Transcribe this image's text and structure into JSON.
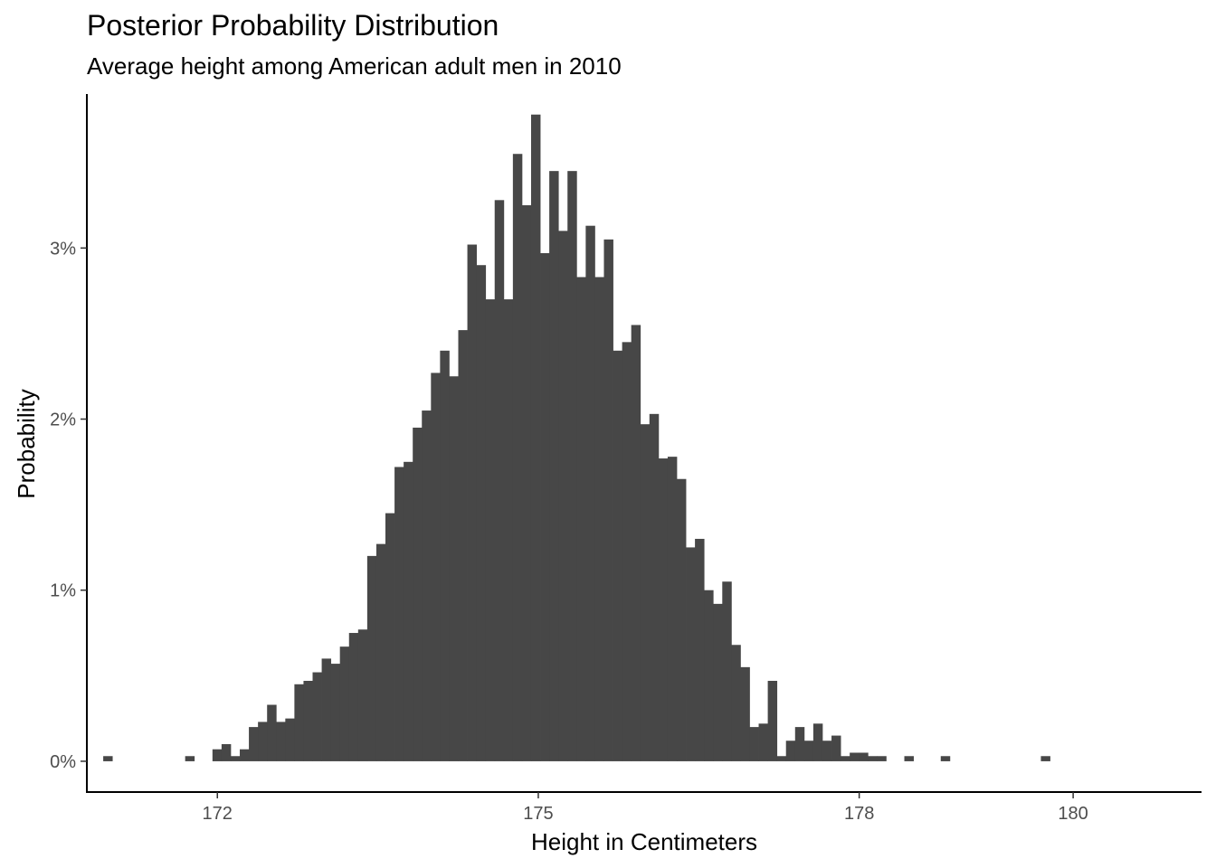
{
  "chart_data": {
    "type": "bar",
    "title": "Posterior Probability Distribution",
    "subtitle": "Average height among American adult men in 2010",
    "xlabel": "Height in Centimeters",
    "ylabel": "Probability",
    "xlim": [
      170.78,
      181.2
    ],
    "ylim": [
      -0.0018,
      0.039
    ],
    "x_ticks": [
      172,
      175,
      178,
      180
    ],
    "x_tick_labels": [
      "172",
      "175",
      "178",
      "180"
    ],
    "y_ticks": [
      0,
      0.01,
      0.02,
      0.03
    ],
    "y_tick_labels": [
      "0%",
      "1%",
      "2%",
      "3%"
    ],
    "grid": false,
    "bar_color": "#474747",
    "bin_width": 0.0851,
    "bins_start": 170.933,
    "bins": [
      [
        0,
        0.0003
      ],
      [
        9,
        0.0003
      ],
      [
        12,
        0.0007
      ],
      [
        13,
        0.001
      ],
      [
        14,
        0.0003
      ],
      [
        15,
        0.0007
      ],
      [
        16,
        0.002
      ],
      [
        17,
        0.0023
      ],
      [
        18,
        0.0033
      ],
      [
        19,
        0.0023
      ],
      [
        20,
        0.0025
      ],
      [
        21,
        0.0045
      ],
      [
        22,
        0.0047
      ],
      [
        23,
        0.0052
      ],
      [
        24,
        0.006
      ],
      [
        25,
        0.0057
      ],
      [
        26,
        0.0067
      ],
      [
        27,
        0.0075
      ],
      [
        28,
        0.0077
      ],
      [
        29,
        0.012
      ],
      [
        30,
        0.0127
      ],
      [
        31,
        0.0145
      ],
      [
        32,
        0.0172
      ],
      [
        33,
        0.0175
      ],
      [
        34,
        0.0195
      ],
      [
        35,
        0.0205
      ],
      [
        36,
        0.0227
      ],
      [
        37,
        0.024
      ],
      [
        38,
        0.0225
      ],
      [
        39,
        0.0252
      ],
      [
        40,
        0.0302
      ],
      [
        41,
        0.029
      ],
      [
        42,
        0.027
      ],
      [
        43,
        0.0328
      ],
      [
        44,
        0.027
      ],
      [
        45,
        0.0355
      ],
      [
        46,
        0.0325
      ],
      [
        47,
        0.0378
      ],
      [
        48,
        0.0297
      ],
      [
        49,
        0.0345
      ],
      [
        50,
        0.031
      ],
      [
        51,
        0.0345
      ],
      [
        52,
        0.0283
      ],
      [
        53,
        0.0313
      ],
      [
        54,
        0.0283
      ],
      [
        55,
        0.0305
      ],
      [
        56,
        0.024
      ],
      [
        57,
        0.0245
      ],
      [
        58,
        0.0255
      ],
      [
        59,
        0.0197
      ],
      [
        60,
        0.0203
      ],
      [
        61,
        0.0177
      ],
      [
        62,
        0.0178
      ],
      [
        63,
        0.0165
      ],
      [
        64,
        0.0125
      ],
      [
        65,
        0.013
      ],
      [
        66,
        0.01
      ],
      [
        67,
        0.0092
      ],
      [
        68,
        0.0105
      ],
      [
        69,
        0.0068
      ],
      [
        70,
        0.0055
      ],
      [
        71,
        0.002
      ],
      [
        72,
        0.0022
      ],
      [
        73,
        0.0047
      ],
      [
        74,
        0.0003
      ],
      [
        75,
        0.0012
      ],
      [
        76,
        0.002
      ],
      [
        77,
        0.0012
      ],
      [
        78,
        0.0022
      ],
      [
        79,
        0.0012
      ],
      [
        80,
        0.0015
      ],
      [
        81,
        0.0003
      ],
      [
        82,
        0.0005
      ],
      [
        83,
        0.0005
      ],
      [
        84,
        0.0003
      ],
      [
        85,
        0.0003
      ],
      [
        88,
        0.0003
      ],
      [
        92,
        0.0003
      ],
      [
        103,
        0.0003
      ]
    ]
  }
}
